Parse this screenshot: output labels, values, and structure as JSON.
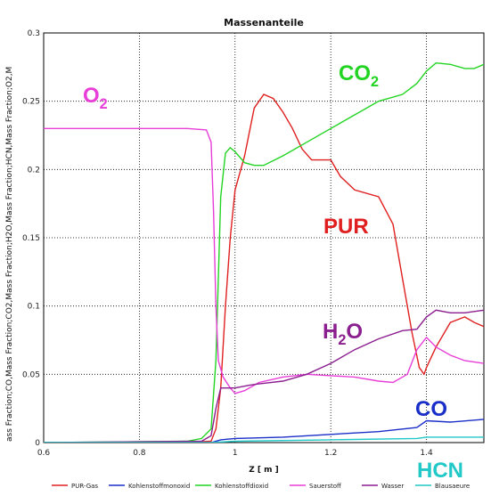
{
  "chart_data": {
    "type": "line",
    "title": "Massenanteile",
    "xlabel": "Z [ m ]",
    "ylabel": "ass Fraction;CO,Mass Fraction;CO2,Mass Fraction;H2O,Mass Fraction;HCN,Mass Fraction;O2,M",
    "xlim": [
      0.6,
      1.52
    ],
    "ylim": [
      0,
      0.3
    ],
    "xticks": [
      "0.6",
      "0.8",
      "1",
      "1.2",
      "1.4"
    ],
    "yticks": [
      "0",
      "0.05",
      "0.1",
      "0.15",
      "0.2",
      "0.25",
      "0.3"
    ],
    "grid": true,
    "legend_position": "bottom",
    "series": [
      {
        "name": "PUR-Gas",
        "color": "#e02020",
        "points": [
          [
            0.6,
            0
          ],
          [
            0.9,
            0
          ],
          [
            0.95,
            0.001
          ],
          [
            0.96,
            0.01
          ],
          [
            0.97,
            0.04
          ],
          [
            0.98,
            0.1
          ],
          [
            0.99,
            0.15
          ],
          [
            1.0,
            0.185
          ],
          [
            1.02,
            0.21
          ],
          [
            1.04,
            0.245
          ],
          [
            1.06,
            0.255
          ],
          [
            1.08,
            0.252
          ],
          [
            1.1,
            0.242
          ],
          [
            1.12,
            0.23
          ],
          [
            1.14,
            0.215
          ],
          [
            1.16,
            0.207
          ],
          [
            1.2,
            0.207
          ],
          [
            1.22,
            0.195
          ],
          [
            1.25,
            0.185
          ],
          [
            1.3,
            0.18
          ],
          [
            1.33,
            0.16
          ],
          [
            1.35,
            0.12
          ],
          [
            1.37,
            0.08
          ],
          [
            1.385,
            0.055
          ],
          [
            1.395,
            0.05
          ],
          [
            1.4,
            0.055
          ],
          [
            1.42,
            0.07
          ],
          [
            1.45,
            0.088
          ],
          [
            1.48,
            0.092
          ],
          [
            1.5,
            0.088
          ],
          [
            1.52,
            0.085
          ]
        ]
      },
      {
        "name": "Kohlenstoffmonoxid",
        "color": "#1a2ec8",
        "points": [
          [
            0.6,
            0
          ],
          [
            0.95,
            0
          ],
          [
            0.97,
            0.002
          ],
          [
            1.0,
            0.003
          ],
          [
            1.1,
            0.004
          ],
          [
            1.2,
            0.006
          ],
          [
            1.3,
            0.008
          ],
          [
            1.38,
            0.011
          ],
          [
            1.4,
            0.016
          ],
          [
            1.45,
            0.015
          ],
          [
            1.52,
            0.017
          ]
        ]
      },
      {
        "name": "Kohlenstoffdioxid",
        "color": "#22d422",
        "points": [
          [
            0.6,
            0
          ],
          [
            0.9,
            0.001
          ],
          [
            0.93,
            0.003
          ],
          [
            0.95,
            0.01
          ],
          [
            0.96,
            0.06
          ],
          [
            0.97,
            0.18
          ],
          [
            0.98,
            0.212
          ],
          [
            0.99,
            0.216
          ],
          [
            1.0,
            0.213
          ],
          [
            1.02,
            0.205
          ],
          [
            1.04,
            0.203
          ],
          [
            1.06,
            0.203
          ],
          [
            1.1,
            0.21
          ],
          [
            1.15,
            0.22
          ],
          [
            1.2,
            0.23
          ],
          [
            1.25,
            0.24
          ],
          [
            1.3,
            0.25
          ],
          [
            1.35,
            0.255
          ],
          [
            1.38,
            0.263
          ],
          [
            1.4,
            0.272
          ],
          [
            1.42,
            0.278
          ],
          [
            1.45,
            0.277
          ],
          [
            1.48,
            0.274
          ],
          [
            1.5,
            0.274
          ],
          [
            1.52,
            0.277
          ]
        ]
      },
      {
        "name": "Sauerstoff",
        "color": "#e83ed8",
        "points": [
          [
            0.6,
            0.23
          ],
          [
            0.9,
            0.23
          ],
          [
            0.94,
            0.229
          ],
          [
            0.95,
            0.22
          ],
          [
            0.955,
            0.17
          ],
          [
            0.96,
            0.1
          ],
          [
            0.965,
            0.06
          ],
          [
            0.975,
            0.048
          ],
          [
            0.99,
            0.04
          ],
          [
            1.0,
            0.036
          ],
          [
            1.02,
            0.038
          ],
          [
            1.05,
            0.044
          ],
          [
            1.1,
            0.048
          ],
          [
            1.15,
            0.05
          ],
          [
            1.2,
            0.049
          ],
          [
            1.25,
            0.048
          ],
          [
            1.3,
            0.045
          ],
          [
            1.33,
            0.044
          ],
          [
            1.36,
            0.05
          ],
          [
            1.38,
            0.068
          ],
          [
            1.4,
            0.077
          ],
          [
            1.42,
            0.07
          ],
          [
            1.45,
            0.064
          ],
          [
            1.48,
            0.06
          ],
          [
            1.52,
            0.058
          ]
        ]
      },
      {
        "name": "Wasser",
        "color": "#8b1f8f",
        "points": [
          [
            0.6,
            0
          ],
          [
            0.93,
            0.001
          ],
          [
            0.95,
            0.005
          ],
          [
            0.96,
            0.025
          ],
          [
            0.97,
            0.04
          ],
          [
            1.0,
            0.04
          ],
          [
            1.03,
            0.042
          ],
          [
            1.05,
            0.043
          ],
          [
            1.1,
            0.045
          ],
          [
            1.15,
            0.05
          ],
          [
            1.2,
            0.058
          ],
          [
            1.25,
            0.068
          ],
          [
            1.3,
            0.076
          ],
          [
            1.35,
            0.082
          ],
          [
            1.38,
            0.083
          ],
          [
            1.4,
            0.092
          ],
          [
            1.42,
            0.097
          ],
          [
            1.45,
            0.095
          ],
          [
            1.48,
            0.095
          ],
          [
            1.52,
            0.097
          ]
        ]
      },
      {
        "name": "Blausaeure",
        "color": "#20c8c8",
        "points": [
          [
            0.6,
            0
          ],
          [
            0.95,
            0
          ],
          [
            1.0,
            0.001
          ],
          [
            1.2,
            0.002
          ],
          [
            1.38,
            0.003
          ],
          [
            1.4,
            0.004
          ],
          [
            1.52,
            0.004
          ]
        ]
      }
    ],
    "annotations": [
      {
        "id": "o2",
        "base": "O",
        "sub": "2",
        "color": "#e83ed8"
      },
      {
        "id": "co2",
        "base": "CO",
        "sub": "2",
        "color": "#22d422"
      },
      {
        "id": "pur",
        "base": "PUR",
        "sub": "",
        "color": "#e02020"
      },
      {
        "id": "h2o",
        "base": "H",
        "sub": "2",
        "tail": "O",
        "color": "#8b1f8f"
      },
      {
        "id": "co",
        "base": "CO",
        "sub": "",
        "color": "#1a2ec8"
      },
      {
        "id": "hcn",
        "base": "HCN",
        "sub": "",
        "color": "#20c8c8"
      }
    ]
  }
}
